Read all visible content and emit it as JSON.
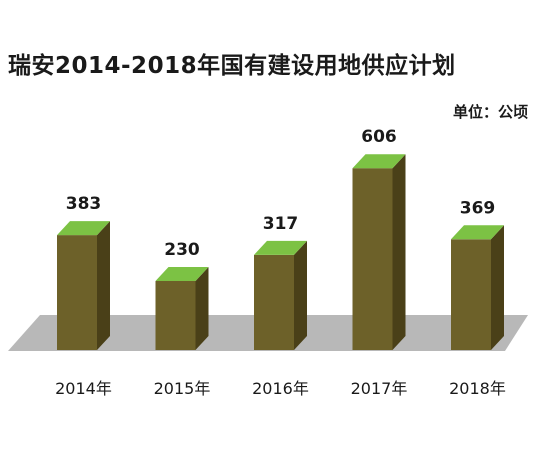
{
  "header": {
    "title": "瑞安2014-2018年国有建设用地供应计划",
    "unit": "单位：公顷"
  },
  "colors": {
    "bar_front": "#6d6129",
    "bar_side": "#4a4018",
    "bar_top": "#7cc244",
    "floor": "#b8b8b8"
  },
  "chart_data": {
    "type": "bar",
    "title": "瑞安2014-2018年国有建设用地供应计划",
    "xlabel": "",
    "ylabel": "单位：公顷",
    "categories": [
      "2014年",
      "2015年",
      "2016年",
      "2017年",
      "2018年"
    ],
    "series": [
      {
        "values": [
          383,
          230,
          317,
          606,
          369
        ]
      }
    ],
    "ylim": [
      0,
      700
    ],
    "grid": false,
    "legend": "none"
  }
}
